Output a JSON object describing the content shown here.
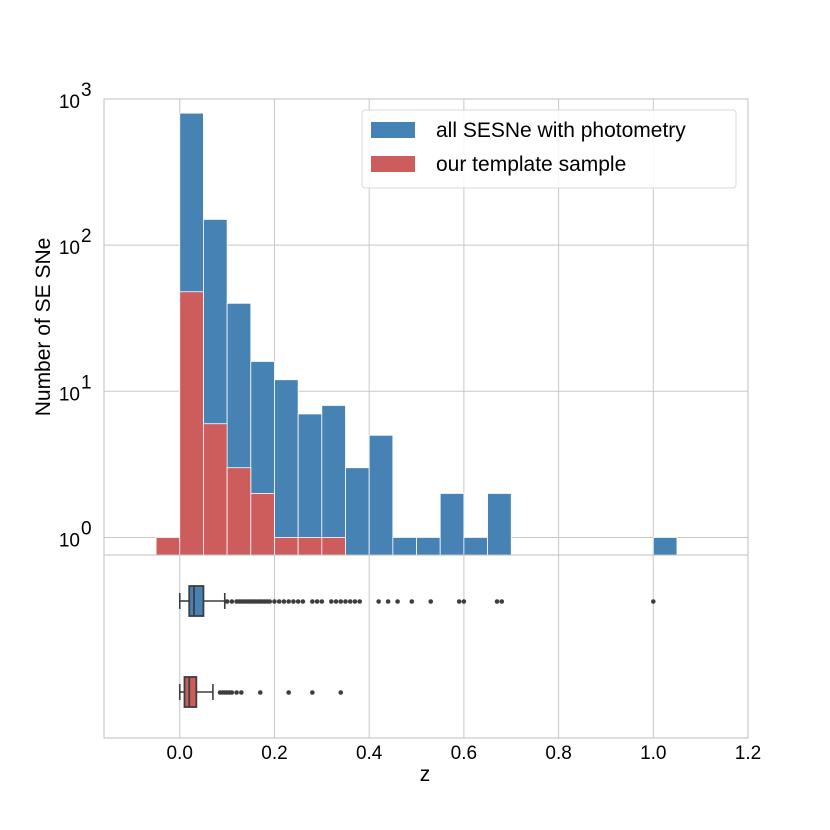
{
  "chart_data": [
    {
      "type": "histogram",
      "scale_y": "log",
      "xlim": [
        -0.16,
        1.2
      ],
      "ylim_log10": [
        -0.12,
        3.0
      ],
      "xticks": [
        0.0,
        0.2,
        0.4,
        0.6,
        0.8,
        1.0,
        1.2
      ],
      "xtick_labels": [
        "0.0",
        "0.2",
        "0.4",
        "0.6",
        "0.8",
        "1.0",
        "1.2"
      ],
      "yticks": [
        1,
        10,
        100,
        1000
      ],
      "ytick_bases": [
        "10",
        "10",
        "10",
        "10"
      ],
      "ytick_exps": [
        "0",
        "1",
        "2",
        "3"
      ],
      "ylabel": "Number of SE SNe",
      "legend_position": "top-right",
      "series": [
        {
          "name": "all SESNe with photometry",
          "color": "#4682b4",
          "bins": [
            {
              "x0": 0.0,
              "x1": 0.05,
              "count": 800
            },
            {
              "x0": 0.05,
              "x1": 0.1,
              "count": 150
            },
            {
              "x0": 0.1,
              "x1": 0.15,
              "count": 40
            },
            {
              "x0": 0.15,
              "x1": 0.2,
              "count": 16
            },
            {
              "x0": 0.2,
              "x1": 0.25,
              "count": 12
            },
            {
              "x0": 0.25,
              "x1": 0.3,
              "count": 7
            },
            {
              "x0": 0.3,
              "x1": 0.35,
              "count": 8
            },
            {
              "x0": 0.35,
              "x1": 0.4,
              "count": 3
            },
            {
              "x0": 0.4,
              "x1": 0.45,
              "count": 5
            },
            {
              "x0": 0.45,
              "x1": 0.5,
              "count": 1
            },
            {
              "x0": 0.5,
              "x1": 0.55,
              "count": 1
            },
            {
              "x0": 0.55,
              "x1": 0.6,
              "count": 2
            },
            {
              "x0": 0.6,
              "x1": 0.65,
              "count": 1
            },
            {
              "x0": 0.65,
              "x1": 0.7,
              "count": 2
            },
            {
              "x0": 1.0,
              "x1": 1.05,
              "count": 1
            }
          ]
        },
        {
          "name": "our template sample",
          "color": "#cd5c5c",
          "bins": [
            {
              "x0": -0.05,
              "x1": 0.0,
              "count": 1
            },
            {
              "x0": 0.0,
              "x1": 0.05,
              "count": 48
            },
            {
              "x0": 0.05,
              "x1": 0.1,
              "count": 6
            },
            {
              "x0": 0.1,
              "x1": 0.15,
              "count": 3
            },
            {
              "x0": 0.15,
              "x1": 0.2,
              "count": 2
            },
            {
              "x0": 0.2,
              "x1": 0.25,
              "count": 1
            },
            {
              "x0": 0.25,
              "x1": 0.3,
              "count": 1
            },
            {
              "x0": 0.3,
              "x1": 0.35,
              "count": 1
            }
          ]
        }
      ]
    },
    {
      "type": "boxplot",
      "xlabel": "z",
      "series": [
        {
          "name": "all SESNe with photometry",
          "color": "#4682b4",
          "whisker_low": 0.0,
          "q1": 0.02,
          "median": 0.03,
          "q3": 0.05,
          "whisker_high": 0.095,
          "outliers": [
            0.1,
            0.11,
            0.12,
            0.125,
            0.13,
            0.135,
            0.14,
            0.145,
            0.15,
            0.155,
            0.16,
            0.165,
            0.17,
            0.175,
            0.18,
            0.185,
            0.19,
            0.2,
            0.21,
            0.22,
            0.23,
            0.24,
            0.25,
            0.26,
            0.28,
            0.29,
            0.3,
            0.32,
            0.33,
            0.34,
            0.35,
            0.36,
            0.37,
            0.38,
            0.42,
            0.44,
            0.46,
            0.49,
            0.53,
            0.59,
            0.6,
            0.67,
            0.68,
            1.0
          ]
        },
        {
          "name": "our template sample",
          "color": "#cd5c5c",
          "whisker_low": 0.0,
          "q1": 0.01,
          "median": 0.02,
          "q3": 0.035,
          "whisker_high": 0.07,
          "outliers": [
            0.085,
            0.09,
            0.095,
            0.1,
            0.105,
            0.11,
            0.12,
            0.13,
            0.17,
            0.23,
            0.28,
            0.34
          ]
        }
      ]
    }
  ]
}
